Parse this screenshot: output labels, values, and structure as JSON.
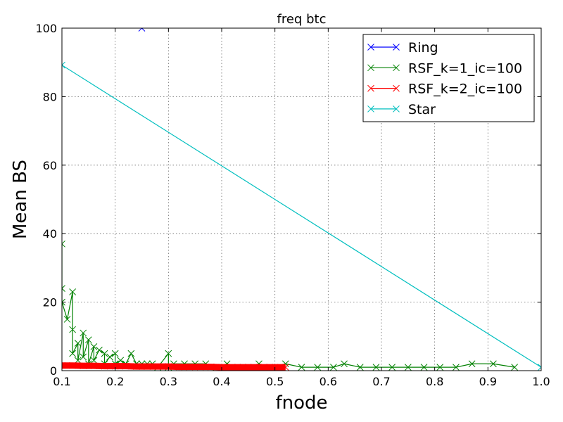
{
  "chart_data": {
    "type": "line",
    "title": "freq btc",
    "xlabel": "fnode",
    "ylabel": "Mean BS",
    "xlim": [
      0.1,
      1.0
    ],
    "ylim": [
      0,
      100
    ],
    "xticks": [
      0.1,
      0.2,
      0.3,
      0.4,
      0.5,
      0.6,
      0.7,
      0.8,
      0.9,
      1.0
    ],
    "xtick_labels": [
      "0.1",
      "0.2",
      "0.3",
      "0.4",
      "0.5",
      "0.6",
      "0.7",
      "0.8",
      "0.9",
      "1.0"
    ],
    "yticks": [
      0,
      20,
      40,
      60,
      80,
      100
    ],
    "ytick_labels": [
      "0",
      "20",
      "40",
      "60",
      "80",
      "100"
    ],
    "grid": true,
    "legend_position": "top-right",
    "series": [
      {
        "name": "Ring",
        "color": "#0000ff",
        "marker": "x",
        "x": [
          0.25
        ],
        "y": [
          100
        ]
      },
      {
        "name": "RSF_k=1_ic=100",
        "color": "#008000",
        "marker": "x",
        "x": [
          0.1,
          0.1,
          0.1,
          0.11,
          0.12,
          0.12,
          0.12,
          0.13,
          0.13,
          0.14,
          0.14,
          0.15,
          0.15,
          0.16,
          0.16,
          0.17,
          0.18,
          0.18,
          0.19,
          0.2,
          0.2,
          0.21,
          0.22,
          0.23,
          0.24,
          0.25,
          0.26,
          0.27,
          0.28,
          0.3,
          0.3,
          0.31,
          0.33,
          0.35,
          0.37,
          0.39,
          0.41,
          0.43,
          0.45,
          0.47,
          0.49,
          0.52,
          0.55,
          0.58,
          0.61,
          0.63,
          0.66,
          0.69,
          0.72,
          0.75,
          0.78,
          0.81,
          0.84,
          0.87,
          0.91,
          0.95
        ],
        "y": [
          37,
          24,
          20,
          15,
          23,
          12,
          5,
          8,
          3,
          11,
          4,
          9,
          2,
          7,
          3,
          6,
          5,
          2,
          4,
          5,
          2,
          3,
          2,
          5,
          2,
          2,
          2,
          2,
          1,
          5,
          1,
          2,
          2,
          2,
          2,
          1,
          2,
          1,
          1,
          2,
          1,
          2,
          1,
          1,
          1,
          2,
          1,
          1,
          1,
          1,
          1,
          1,
          1,
          2,
          2,
          1
        ]
      },
      {
        "name": "RSF_k=2_ic=100",
        "color": "#ff0000",
        "marker": "x",
        "x": [
          0.1,
          0.12,
          0.14,
          0.16,
          0.18,
          0.2,
          0.22,
          0.24,
          0.26,
          0.28,
          0.3,
          0.32,
          0.34,
          0.36,
          0.38,
          0.4,
          0.42,
          0.44,
          0.46,
          0.48,
          0.5,
          0.52
        ],
        "y": [
          1.5,
          1.5,
          1.4,
          1.4,
          1.3,
          1.3,
          1.3,
          1.2,
          1.2,
          1.2,
          1.2,
          1.1,
          1.1,
          1.1,
          1.1,
          1,
          1,
          1,
          1,
          1,
          1,
          1
        ]
      },
      {
        "name": "Star",
        "color": "#00bfbf",
        "marker": "x",
        "x": [
          0.1,
          1.0
        ],
        "y": [
          89.2,
          1
        ]
      }
    ]
  }
}
